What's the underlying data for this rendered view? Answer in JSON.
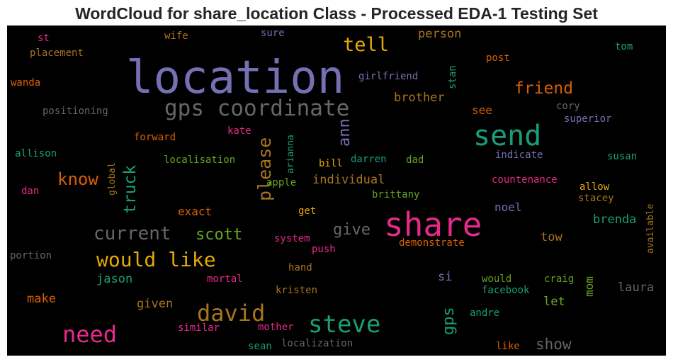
{
  "chart_data": {
    "type": "wordcloud",
    "title": "WordCloud for share_location Class - Processed EDA-1 Testing Set",
    "background": "#000000",
    "colormap": "Dark2",
    "words": [
      {
        "text": "location",
        "color": "#7570b3"
      },
      {
        "text": "share",
        "color": "#e7298a"
      },
      {
        "text": "send",
        "color": "#1b9e77"
      },
      {
        "text": "gps coordinate",
        "color": "#666666"
      },
      {
        "text": "steve",
        "color": "#1b9e77"
      },
      {
        "text": "need",
        "color": "#e7298a"
      },
      {
        "text": "david",
        "color": "#a6761d"
      },
      {
        "text": "would like",
        "color": "#e6ab02"
      },
      {
        "text": "current",
        "color": "#666666"
      },
      {
        "text": "tell",
        "color": "#e6ab02"
      },
      {
        "text": "friend",
        "color": "#d95f02"
      },
      {
        "text": "please",
        "color": "#a6761d"
      },
      {
        "text": "know",
        "color": "#d95f02"
      },
      {
        "text": "truck",
        "color": "#1b9e77"
      },
      {
        "text": "scott",
        "color": "#66a61e"
      },
      {
        "text": "give",
        "color": "#666666"
      },
      {
        "text": "ann",
        "color": "#7570b3"
      },
      {
        "text": "gps",
        "color": "#1b9e77"
      },
      {
        "text": "show",
        "color": "#666666"
      },
      {
        "text": "individual",
        "color": "#a6761d"
      },
      {
        "text": "brother",
        "color": "#a6761d"
      },
      {
        "text": "person",
        "color": "#a6761d"
      },
      {
        "text": "exact",
        "color": "#d95f02"
      },
      {
        "text": "jason",
        "color": "#1b9e77"
      },
      {
        "text": "make",
        "color": "#d95f02"
      },
      {
        "text": "given",
        "color": "#a6761d"
      },
      {
        "text": "brenda",
        "color": "#1b9e77"
      },
      {
        "text": "laura",
        "color": "#666666"
      },
      {
        "text": "tow",
        "color": "#a6761d"
      },
      {
        "text": "noel",
        "color": "#7570b3"
      },
      {
        "text": "let",
        "color": "#66a61e"
      },
      {
        "text": "mom",
        "color": "#66a61e"
      },
      {
        "text": "si",
        "color": "#7570b3"
      },
      {
        "text": "see",
        "color": "#d95f02"
      },
      {
        "text": "post",
        "color": "#d95f02"
      },
      {
        "text": "cory",
        "color": "#666666"
      },
      {
        "text": "superior",
        "color": "#7570b3"
      },
      {
        "text": "indicate",
        "color": "#7570b3"
      },
      {
        "text": "susan",
        "color": "#1b9e77"
      },
      {
        "text": "countenance",
        "color": "#e7298a"
      },
      {
        "text": "allow",
        "color": "#e6ab02"
      },
      {
        "text": "stacey",
        "color": "#a6761d"
      },
      {
        "text": "available",
        "color": "#a6761d"
      },
      {
        "text": "tom",
        "color": "#1b9e77"
      },
      {
        "text": "stan",
        "color": "#1b9e77"
      },
      {
        "text": "girlfriend",
        "color": "#7570b3"
      },
      {
        "text": "sure",
        "color": "#7570b3"
      },
      {
        "text": "wife",
        "color": "#a6761d"
      },
      {
        "text": "st",
        "color": "#e7298a"
      },
      {
        "text": "placement",
        "color": "#a6761d"
      },
      {
        "text": "wanda",
        "color": "#d95f02"
      },
      {
        "text": "positioning",
        "color": "#666666"
      },
      {
        "text": "forward",
        "color": "#d95f02"
      },
      {
        "text": "kate",
        "color": "#e7298a"
      },
      {
        "text": "allison",
        "color": "#1b9e77"
      },
      {
        "text": "localisation",
        "color": "#66a61e"
      },
      {
        "text": "arianna",
        "color": "#1b9e77"
      },
      {
        "text": "bill",
        "color": "#e6ab02"
      },
      {
        "text": "darren",
        "color": "#1b9e77"
      },
      {
        "text": "dad",
        "color": "#66a61e"
      },
      {
        "text": "apple",
        "color": "#66a61e"
      },
      {
        "text": "brittany",
        "color": "#66a61e"
      },
      {
        "text": "global",
        "color": "#a6761d"
      },
      {
        "text": "dan",
        "color": "#e7298a"
      },
      {
        "text": "get",
        "color": "#e6ab02"
      },
      {
        "text": "system",
        "color": "#e7298a"
      },
      {
        "text": "push",
        "color": "#e7298a"
      },
      {
        "text": "demonstrate",
        "color": "#d95f02"
      },
      {
        "text": "portion",
        "color": "#666666"
      },
      {
        "text": "mortal",
        "color": "#e7298a"
      },
      {
        "text": "hand",
        "color": "#a6761d"
      },
      {
        "text": "kristen",
        "color": "#a6761d"
      },
      {
        "text": "similar",
        "color": "#e7298a"
      },
      {
        "text": "mother",
        "color": "#e7298a"
      },
      {
        "text": "sean",
        "color": "#1b9e77"
      },
      {
        "text": "localization",
        "color": "#666666"
      },
      {
        "text": "would",
        "color": "#66a61e"
      },
      {
        "text": "facebook",
        "color": "#1b9e77"
      },
      {
        "text": "craig",
        "color": "#66a61e"
      },
      {
        "text": "andre",
        "color": "#1b9e77"
      },
      {
        "text": "like",
        "color": "#d95f02"
      }
    ]
  }
}
